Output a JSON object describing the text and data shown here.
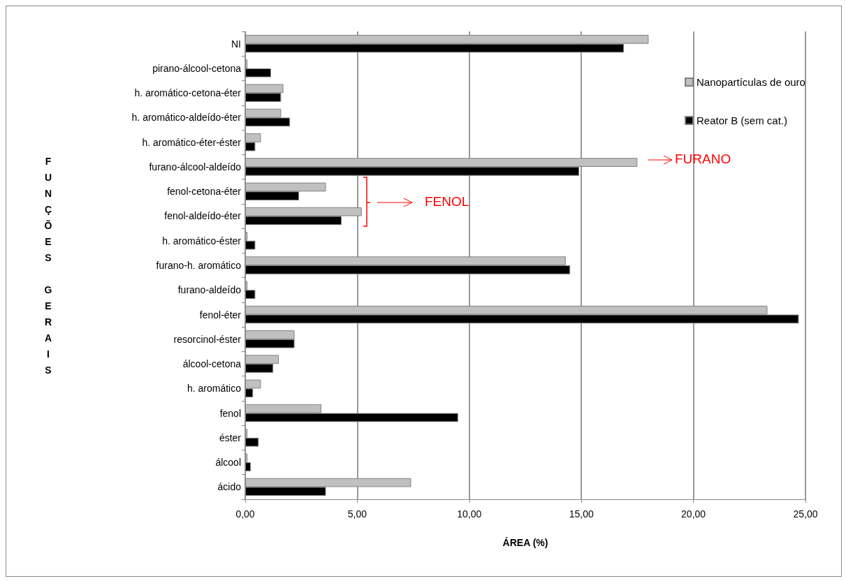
{
  "chart_data": {
    "type": "bar",
    "orientation": "horizontal",
    "xlabel": "ÁREA (%)",
    "ylabel": "FUNÇÕES GERAIS",
    "categories": [
      "NI",
      "pirano-álcool-cetona",
      "h. aromático-cetona-éter",
      "h. aromático-aldeído-éter",
      "h. aromático-éter-éster",
      "furano-álcool-aldeído",
      "fenol-cetona-éter",
      "fenol-aldeído-éter",
      "h. aromático-éster",
      "furano-h. aromático",
      "furano-aldeído",
      "fenol-éter",
      "resorcinol-éster",
      "álcool-cetona",
      "h. aromático",
      "fenol",
      "éster",
      "álcool",
      "ácido"
    ],
    "series": [
      {
        "name": "Nanopartículas de ouro",
        "color": "#c0c0c0",
        "values": [
          18.0,
          0.1,
          1.7,
          1.6,
          0.7,
          17.5,
          3.6,
          5.2,
          0.1,
          14.3,
          0.1,
          23.3,
          2.2,
          1.5,
          0.7,
          3.4,
          0.1,
          0.1,
          7.4
        ]
      },
      {
        "name": "Reator B (sem cat.)",
        "color": "#000000",
        "values": [
          16.9,
          1.15,
          1.6,
          2.0,
          0.45,
          14.9,
          2.4,
          4.3,
          0.45,
          14.5,
          0.45,
          24.7,
          2.2,
          1.25,
          0.35,
          9.5,
          0.6,
          0.25,
          3.6
        ]
      }
    ],
    "xlim": [
      0,
      25
    ],
    "xticks": [
      {
        "value": 0,
        "label": "0,00"
      },
      {
        "value": 5,
        "label": "5,00"
      },
      {
        "value": 10,
        "label": "10,00"
      },
      {
        "value": 15,
        "label": "15,00"
      },
      {
        "value": 20,
        "label": "20,00"
      },
      {
        "value": 25,
        "label": "25,00"
      }
    ],
    "grid": "x",
    "legend": "top right",
    "annotations": [
      "FURANO",
      "FENOL"
    ]
  }
}
